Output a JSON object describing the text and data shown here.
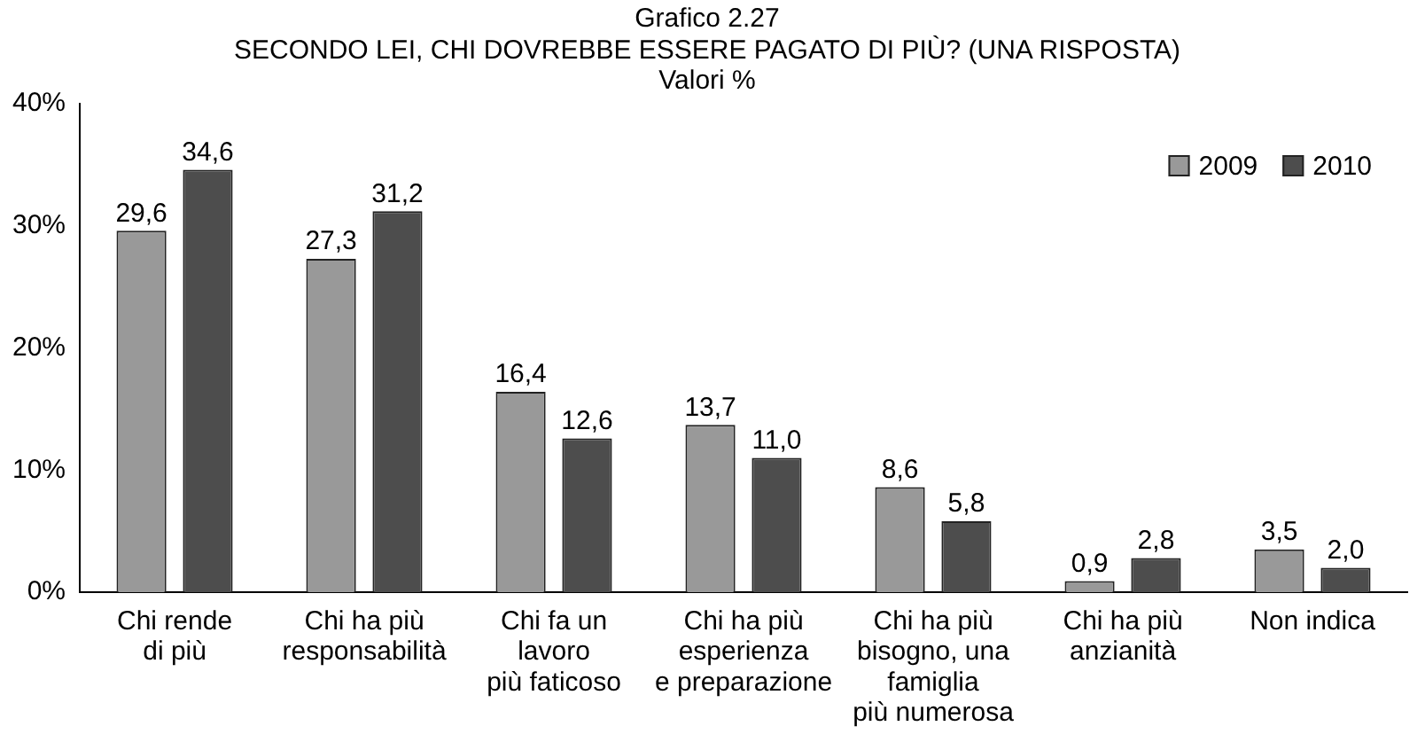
{
  "chart_data": {
    "type": "bar",
    "title": "Grafico 2.27",
    "subtitle": "SECONDO LEI, CHI DOVREBBE ESSERE PAGATO DI PIÙ? (UNA RISPOSTA)\nValori %",
    "categories": [
      "Chi rende\ndi più",
      "Chi ha più\nresponsabilità",
      "Chi fa un\nlavoro\npiù faticoso",
      "Chi ha più\nesperienza\ne preparazione",
      "Chi ha più\nbisogno, una\nfamiglia\npiù numerosa",
      "Chi ha più\nanzianità",
      "Non indica"
    ],
    "series": [
      {
        "name": "2009",
        "color": "#999999",
        "values": [
          29.6,
          27.3,
          16.4,
          13.7,
          8.6,
          0.9,
          3.5
        ],
        "value_labels": [
          "29,6",
          "27,3",
          "16,4",
          "13,7",
          "8,6",
          "0,9",
          "3,5"
        ]
      },
      {
        "name": "2010",
        "color": "#4d4d4d",
        "values": [
          34.6,
          31.2,
          12.6,
          11.0,
          5.8,
          2.8,
          2.0
        ],
        "value_labels": [
          "34,6",
          "31,2",
          "12,6",
          "11,0",
          "5,8",
          "2,8",
          "2,0"
        ]
      }
    ],
    "ylim": [
      0,
      40
    ],
    "yticks": [
      {
        "value": 0,
        "label": "0%"
      },
      {
        "value": 10,
        "label": "10%"
      },
      {
        "value": 20,
        "label": "20%"
      },
      {
        "value": 30,
        "label": "30%"
      },
      {
        "value": 40,
        "label": "40%"
      }
    ],
    "grid": false,
    "legend": "top right"
  }
}
